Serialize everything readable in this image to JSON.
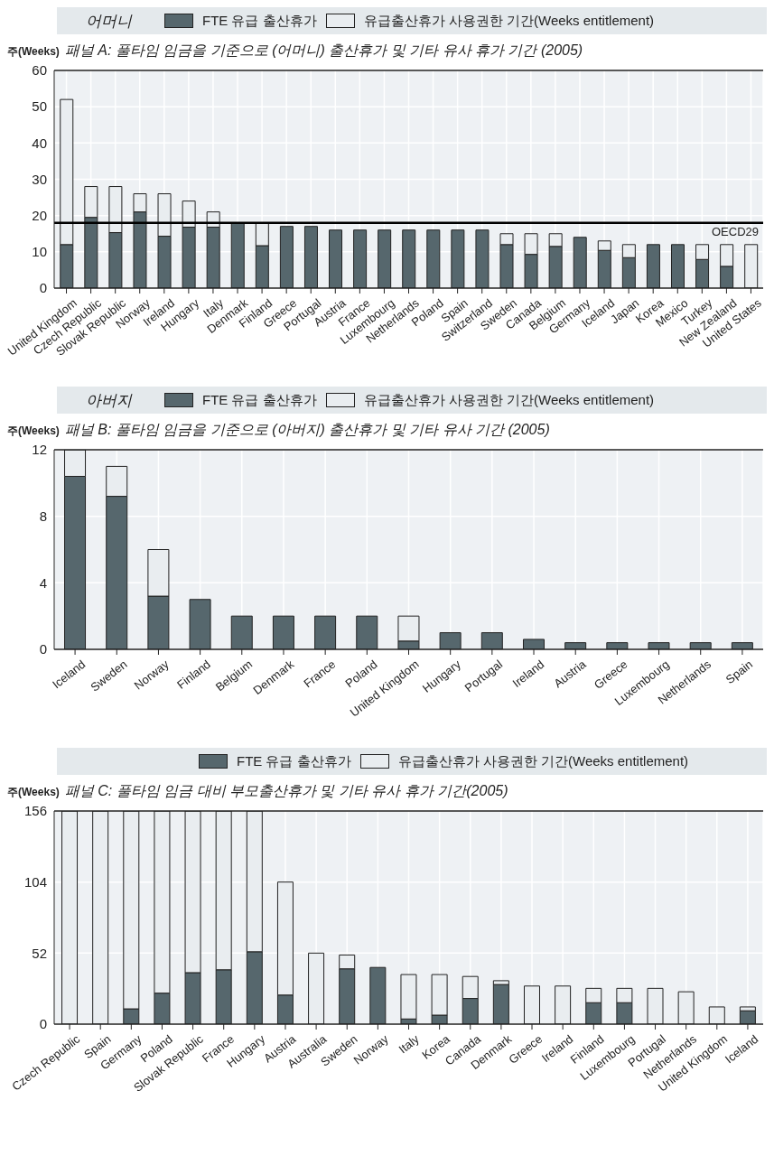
{
  "chart_data": [
    {
      "type": "bar",
      "legend_title": "어머니",
      "title": "패널 A: 풀타임 임금을 기준으로 (어머니) 출산휴가 및 기타 유사 휴가 기간 (2005)",
      "ylabel": "주(Weeks)",
      "categories": [
        "United Kingdom",
        "Czech Republic",
        "Slovak Republic",
        "Norway",
        "Ireland",
        "Hungary",
        "Italy",
        "Denmark",
        "Finland",
        "Greece",
        "Portugal",
        "Austria",
        "France",
        "Luxembourg",
        "Netherlands",
        "Poland",
        "Spain",
        "Switzerland",
        "Sweden",
        "Canada",
        "Belgium",
        "Germany",
        "Iceland",
        "Japan",
        "Korea",
        "Mexico",
        "Turkey",
        "New Zealand",
        "United States"
      ],
      "stacked": true,
      "series": [
        {
          "name": "FTE 유급 출산휴가",
          "color": "#56676d",
          "values": [
            12,
            19.5,
            15.3,
            21,
            14.3,
            16.8,
            16.8,
            18,
            11.7,
            17,
            17,
            16,
            16,
            16,
            16,
            16,
            16,
            16,
            12,
            9.3,
            11.5,
            14,
            10.4,
            8.4,
            12,
            12,
            7.9,
            6,
            0
          ]
        },
        {
          "name": "유급출산휴가 사용권한 기간(Weeks entitlement)",
          "color": "#e9edf0",
          "values": [
            40,
            8.5,
            12.7,
            5,
            11.7,
            7.2,
            4.2,
            0,
            6.3,
            0,
            0,
            0,
            0,
            0,
            0,
            0,
            0,
            0,
            3,
            5.7,
            3.5,
            0,
            2.6,
            3.6,
            0,
            0,
            4.1,
            6,
            12
          ]
        }
      ],
      "ylim": [
        0,
        60
      ],
      "yticks": [
        0,
        10,
        20,
        30,
        40,
        50,
        60
      ],
      "grid": true,
      "legend": "top",
      "ref_lines": [
        {
          "axis": "y",
          "value": 18,
          "label": "OECD29",
          "color": "#000000"
        }
      ]
    },
    {
      "type": "bar",
      "legend_title": "아버지",
      "title": "패널 B: 풀타임 임금을 기준으로 (아버지) 출산휴가 및 기타 유사 기간 (2005)",
      "ylabel": "주(Weeks)",
      "categories": [
        "Iceland",
        "Sweden",
        "Norway",
        "Finland",
        "Belgium",
        "Denmark",
        "France",
        "Poland",
        "United Kingdom",
        "Hungary",
        "Portugal",
        "Ireland",
        "Austria",
        "Greece",
        "Luxembourg",
        "Netherlands",
        "Spain"
      ],
      "stacked": true,
      "series": [
        {
          "name": "FTE 유급 출산휴가",
          "color": "#56676d",
          "values": [
            10.4,
            9.2,
            3.2,
            3,
            2,
            2,
            2,
            2,
            0.5,
            1,
            1,
            0.6,
            0.4,
            0.4,
            0.4,
            0.4,
            0.4
          ]
        },
        {
          "name": "유급출산휴가 사용권한 기간(Weeks entitlement)",
          "color": "#e9edf0",
          "values": [
            1.6,
            1.8,
            2.8,
            0,
            0,
            0,
            0,
            0,
            1.5,
            0,
            0,
            0,
            0,
            0,
            0,
            0,
            0
          ]
        }
      ],
      "ylim": [
        0,
        12
      ],
      "yticks": [
        0,
        4,
        8,
        12
      ],
      "grid": true,
      "legend": "top"
    },
    {
      "type": "bar",
      "title": "패널 C: 풀타임 임금 대비 부모출산휴가 및 기타 유사 휴가 기간(2005)",
      "ylabel": "주(Weeks)",
      "categories": [
        "Czech Republic",
        "Spain",
        "Germany",
        "Poland",
        "Slovak Republic",
        "France",
        "Hungary",
        "Austria",
        "Australia",
        "Sweden",
        "Norway",
        "Italy",
        "Korea",
        "Canada",
        "Denmark",
        "Greece",
        "Ireland",
        "Finland",
        "Luxembourg",
        "Portugal",
        "Netherlands",
        "United Kingdom",
        "Iceland"
      ],
      "stacked": true,
      "series": [
        {
          "name": "FTE 유급 출산휴가",
          "color": "#56676d",
          "values": [
            0,
            0,
            11.2,
            22.7,
            37.7,
            39.8,
            53,
            21.3,
            0,
            40.5,
            41.5,
            3.8,
            6.6,
            18.8,
            29,
            0,
            0,
            15.7,
            15.7,
            0,
            0,
            0,
            9.8
          ]
        },
        {
          "name": "유급출산휴가 사용권한 기간(Weeks entitlement)",
          "color": "#e9edf0",
          "values": [
            156,
            156,
            144.8,
            133.3,
            118.3,
            116.2,
            103,
            82.7,
            52,
            10.1,
            0,
            32.5,
            29.7,
            16.1,
            2.8,
            27.9,
            27.9,
            10.5,
            10.5,
            26.2,
            23.7,
            12.6,
            2.8
          ]
        }
      ],
      "ylim": [
        0,
        156
      ],
      "yticks": [
        0,
        52,
        104,
        156
      ],
      "grid": true,
      "legend": "top"
    }
  ]
}
